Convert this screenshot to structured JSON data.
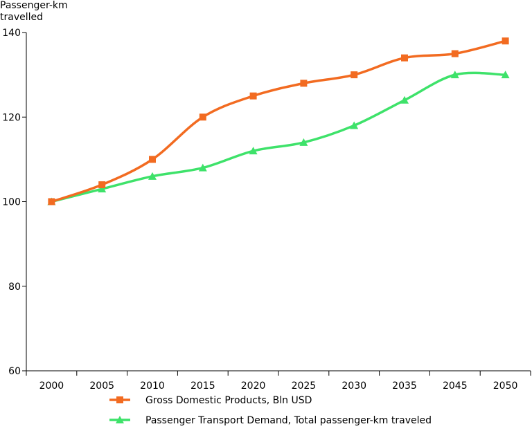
{
  "chart_data": {
    "type": "line",
    "title": "",
    "ylabel_lines": [
      "Passenger-km",
      "travelled"
    ],
    "xlabel": "",
    "categories": [
      "2000",
      "2005",
      "2010",
      "2015",
      "2020",
      "2025",
      "2030",
      "2035",
      "2045",
      "2050"
    ],
    "ylim": [
      60,
      140
    ],
    "yticks": [
      60,
      80,
      100,
      120,
      140
    ],
    "grid": false,
    "legend_position": "bottom",
    "series": [
      {
        "name": "Gross Domestic Products, Bln USD",
        "marker": "square",
        "color": "#f26b21",
        "values": [
          100,
          104,
          110,
          120,
          125,
          128,
          130,
          134,
          135,
          138
        ]
      },
      {
        "name": "Passenger Transport Demand, Total passenger-km traveled",
        "marker": "triangle",
        "color": "#3ee26a",
        "values": [
          100,
          103,
          106,
          108,
          112,
          114,
          118,
          124,
          130,
          130
        ]
      }
    ]
  }
}
